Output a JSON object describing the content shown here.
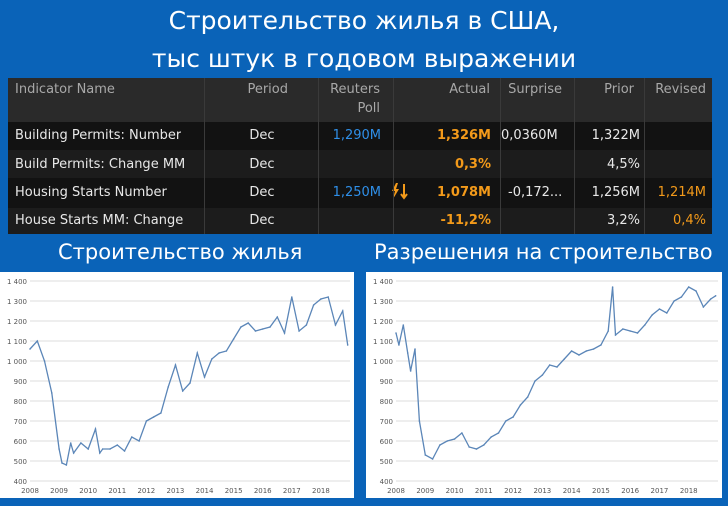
{
  "title": {
    "line1": "Строительство жилья в США,",
    "line2": "тыс штук в годовом выражении"
  },
  "table": {
    "headers": [
      "Indicator Name",
      "Period",
      "Reuters",
      "Poll",
      "Actual",
      "Surprise",
      "Prior",
      "Revised"
    ],
    "rows": [
      {
        "name": "Building Permits: Number",
        "period": "Dec",
        "poll": "1,290M",
        "actual": "1,326M",
        "surprise": "0,0360M",
        "prior": "1,322M",
        "revised": ""
      },
      {
        "name": "Build Permits: Change MM",
        "period": "Dec",
        "poll": "",
        "actual": "0,3%",
        "surprise": "",
        "prior": "4,5%",
        "revised": ""
      },
      {
        "name": "Housing Starts Number",
        "period": "Dec",
        "poll": "1,250M",
        "actual": "1,078M",
        "surprise": "-0,172...",
        "prior": "1,256M",
        "revised": "1,214M"
      },
      {
        "name": "House Starts MM: Change",
        "period": "Dec",
        "poll": "",
        "actual": "-11,2%",
        "surprise": "",
        "prior": "3,2%",
        "revised": "0,4%"
      }
    ],
    "alert_icon": "lightning-arrows-icon"
  },
  "colors": {
    "background": "#0a63b8",
    "line": "#5b86b8",
    "poll": "#2f8fe8",
    "actual": "#f39a1a"
  },
  "chart_data": [
    {
      "type": "line",
      "title": "Строительство жилья",
      "xlabel": "",
      "ylabel": "",
      "ylim": [
        400,
        1400
      ],
      "y_ticks": [
        "400",
        "500",
        "600",
        "700",
        "800",
        "900",
        "1 000",
        "1 100",
        "1 200",
        "1 300",
        "1 400"
      ],
      "x_ticks": [
        "2008",
        "2009",
        "2010",
        "2011",
        "2012",
        "2013",
        "2014",
        "2015",
        "2016",
        "2017",
        "2018"
      ],
      "x": [
        2008.0,
        2008.25,
        2008.5,
        2008.75,
        2009.0,
        2009.1,
        2009.25,
        2009.4,
        2009.5,
        2009.75,
        2010.0,
        2010.25,
        2010.4,
        2010.5,
        2010.75,
        2011.0,
        2011.25,
        2011.5,
        2011.75,
        2012.0,
        2012.25,
        2012.5,
        2012.75,
        2013.0,
        2013.25,
        2013.5,
        2013.75,
        2014.0,
        2014.25,
        2014.5,
        2014.75,
        2015.0,
        2015.25,
        2015.5,
        2015.75,
        2016.0,
        2016.25,
        2016.5,
        2016.75,
        2017.0,
        2017.25,
        2017.5,
        2017.75,
        2018.0,
        2018.25,
        2018.5,
        2018.75,
        2018.92
      ],
      "values": [
        1060,
        1100,
        1000,
        840,
        560,
        490,
        480,
        590,
        540,
        590,
        560,
        660,
        540,
        560,
        560,
        580,
        550,
        620,
        600,
        700,
        720,
        740,
        870,
        980,
        850,
        890,
        1040,
        920,
        1010,
        1040,
        1050,
        1110,
        1170,
        1190,
        1150,
        1160,
        1170,
        1220,
        1140,
        1320,
        1150,
        1180,
        1280,
        1310,
        1320,
        1180,
        1250,
        1080
      ]
    },
    {
      "type": "line",
      "title": "Разрешения на строительство",
      "xlabel": "",
      "ylabel": "",
      "ylim": [
        400,
        1400
      ],
      "y_ticks": [
        "400",
        "500",
        "600",
        "700",
        "800",
        "900",
        "1 000",
        "1 100",
        "1 200",
        "1 300",
        "1 400"
      ],
      "x_ticks": [
        "2008",
        "2009",
        "2010",
        "2011",
        "2012",
        "2013",
        "2014",
        "2015",
        "2016",
        "2017",
        "2018"
      ],
      "x": [
        2008.0,
        2008.1,
        2008.25,
        2008.4,
        2008.5,
        2008.65,
        2008.8,
        2009.0,
        2009.25,
        2009.5,
        2009.75,
        2010.0,
        2010.25,
        2010.5,
        2010.75,
        2011.0,
        2011.25,
        2011.5,
        2011.75,
        2012.0,
        2012.25,
        2012.5,
        2012.75,
        2013.0,
        2013.25,
        2013.5,
        2013.75,
        2014.0,
        2014.25,
        2014.5,
        2014.75,
        2015.0,
        2015.25,
        2015.4,
        2015.5,
        2015.75,
        2016.0,
        2016.25,
        2016.5,
        2016.75,
        2017.0,
        2017.25,
        2017.5,
        2017.75,
        2018.0,
        2018.25,
        2018.5,
        2018.75,
        2018.92
      ],
      "values": [
        1140,
        1080,
        1180,
        1040,
        950,
        1060,
        700,
        530,
        510,
        580,
        600,
        610,
        640,
        570,
        560,
        580,
        620,
        640,
        700,
        720,
        780,
        820,
        900,
        930,
        980,
        970,
        1010,
        1050,
        1030,
        1050,
        1060,
        1080,
        1150,
        1370,
        1130,
        1160,
        1150,
        1140,
        1180,
        1230,
        1260,
        1240,
        1300,
        1320,
        1370,
        1350,
        1270,
        1310,
        1326
      ]
    }
  ]
}
